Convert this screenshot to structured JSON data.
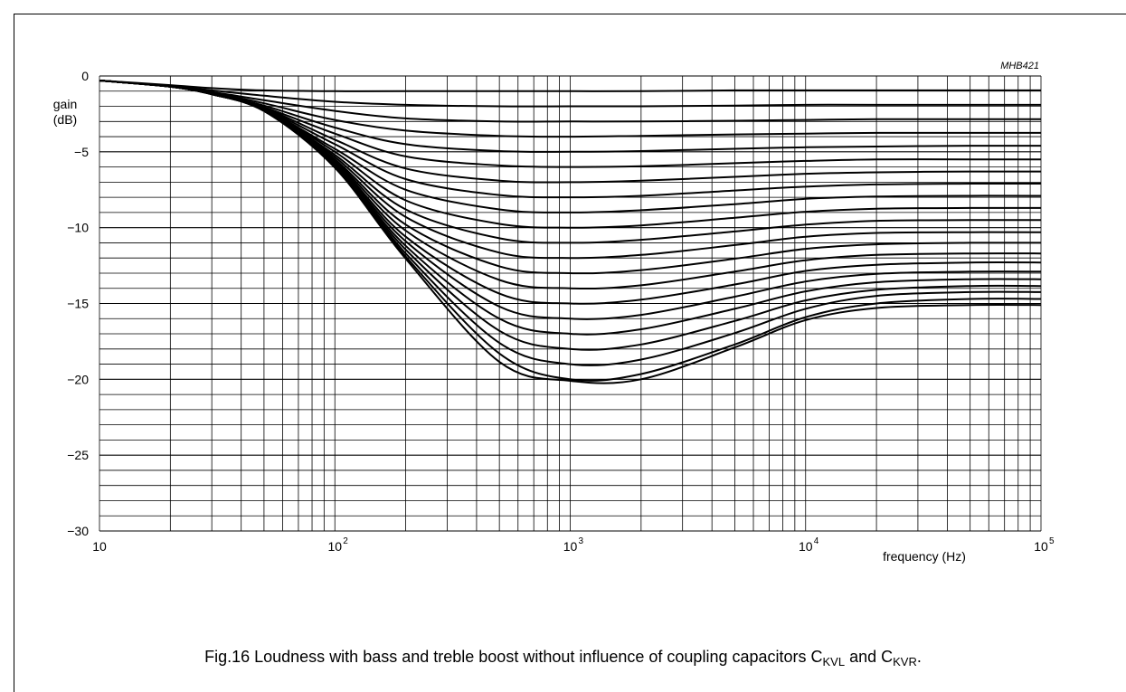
{
  "chart_data": {
    "type": "line",
    "code": "MHB421",
    "ylabel": [
      "gain",
      "(dB)"
    ],
    "xlabel": "frequency (Hz)",
    "x_scale": "log",
    "xlim": [
      10,
      100000
    ],
    "ylim": [
      -30,
      0
    ],
    "grid": true,
    "y_ticks": [
      0,
      -5,
      -10,
      -15,
      -20,
      -25,
      -30
    ],
    "y_tick_labels": [
      "0",
      "−5",
      "−10",
      "−15",
      "−20",
      "−25",
      "−30"
    ],
    "x_ticks": [
      {
        "value": 10,
        "base": "10",
        "exp": ""
      },
      {
        "value": 100,
        "base": "10",
        "exp": "2"
      },
      {
        "value": 1000,
        "base": "10",
        "exp": "3"
      },
      {
        "value": 10000,
        "base": "10",
        "exp": "4"
      },
      {
        "value": 100000,
        "base": "10",
        "exp": "5"
      }
    ],
    "series": [
      {
        "x": [
          10,
          20,
          30,
          50,
          100,
          200,
          500,
          1000,
          2000,
          5000,
          10000,
          20000,
          50000,
          100000
        ],
        "y": [
          -0.3,
          -0.6,
          -0.8,
          -0.95,
          -1.0,
          -1.0,
          -1.0,
          -1.0,
          -1.0,
          -0.95,
          -0.95,
          -0.95,
          -0.95,
          -0.95
        ]
      },
      {
        "x": [
          10,
          20,
          30,
          50,
          100,
          200,
          500,
          1000,
          2000,
          5000,
          10000,
          20000,
          50000,
          100000
        ],
        "y": [
          -0.3,
          -0.65,
          -0.95,
          -1.3,
          -1.7,
          -1.9,
          -2.0,
          -2.0,
          -2.0,
          -1.95,
          -1.9,
          -1.9,
          -1.9,
          -1.9
        ]
      },
      {
        "x": [
          10,
          20,
          30,
          50,
          100,
          200,
          500,
          1000,
          2000,
          5000,
          10000,
          20000,
          50000,
          100000
        ],
        "y": [
          -0.3,
          -0.7,
          -1.05,
          -1.6,
          -2.3,
          -2.8,
          -3.0,
          -3.0,
          -3.0,
          -2.95,
          -2.9,
          -2.85,
          -2.85,
          -2.85
        ]
      },
      {
        "x": [
          10,
          20,
          30,
          50,
          100,
          200,
          500,
          1000,
          2000,
          5000,
          10000,
          20000,
          50000,
          100000
        ],
        "y": [
          -0.3,
          -0.7,
          -1.1,
          -1.8,
          -2.9,
          -3.6,
          -3.95,
          -4.0,
          -3.95,
          -3.85,
          -3.8,
          -3.75,
          -3.75,
          -3.75
        ]
      },
      {
        "x": [
          10,
          20,
          30,
          50,
          100,
          200,
          500,
          1000,
          2000,
          5000,
          10000,
          20000,
          50000,
          100000
        ],
        "y": [
          -0.3,
          -0.7,
          -1.15,
          -1.95,
          -3.4,
          -4.5,
          -4.95,
          -5.0,
          -4.95,
          -4.8,
          -4.7,
          -4.65,
          -4.6,
          -4.6
        ]
      },
      {
        "x": [
          10,
          20,
          30,
          50,
          100,
          200,
          500,
          1000,
          2000,
          5000,
          10000,
          20000,
          50000,
          100000
        ],
        "y": [
          -0.3,
          -0.7,
          -1.15,
          -2.05,
          -3.8,
          -5.3,
          -5.9,
          -6.0,
          -5.95,
          -5.75,
          -5.6,
          -5.5,
          -5.5,
          -5.5
        ]
      },
      {
        "x": [
          10,
          20,
          30,
          50,
          100,
          200,
          500,
          1000,
          2000,
          5000,
          10000,
          20000,
          50000,
          100000
        ],
        "y": [
          -0.3,
          -0.7,
          -1.2,
          -2.1,
          -4.2,
          -6.1,
          -6.9,
          -7.0,
          -6.9,
          -6.65,
          -6.45,
          -6.35,
          -6.3,
          -6.3
        ]
      },
      {
        "x": [
          10,
          20,
          30,
          50,
          100,
          200,
          500,
          1000,
          2000,
          5000,
          10000,
          20000,
          50000,
          100000
        ],
        "y": [
          -0.3,
          -0.7,
          -1.2,
          -2.15,
          -4.5,
          -6.8,
          -7.85,
          -8.0,
          -7.9,
          -7.55,
          -7.3,
          -7.15,
          -7.1,
          -7.1
        ]
      },
      {
        "x": [
          10,
          20,
          30,
          50,
          100,
          200,
          500,
          1000,
          2000,
          5000,
          10000,
          20000,
          50000,
          100000
        ],
        "y": [
          -0.3,
          -0.7,
          -1.2,
          -2.2,
          -4.8,
          -7.5,
          -8.8,
          -9.0,
          -8.85,
          -8.45,
          -8.1,
          -7.95,
          -7.9,
          -7.9
        ]
      },
      {
        "x": [
          10,
          20,
          30,
          50,
          100,
          200,
          500,
          1000,
          2000,
          5000,
          10000,
          20000,
          50000,
          100000
        ],
        "y": [
          -0.3,
          -0.7,
          -1.2,
          -2.2,
          -5.0,
          -8.2,
          -9.75,
          -10.0,
          -9.85,
          -9.35,
          -8.95,
          -8.75,
          -8.7,
          -8.7
        ]
      },
      {
        "x": [
          10,
          20,
          30,
          50,
          100,
          200,
          500,
          1000,
          2000,
          5000,
          10000,
          20000,
          50000,
          100000
        ],
        "y": [
          -0.3,
          -0.7,
          -1.2,
          -2.25,
          -5.2,
          -8.8,
          -10.7,
          -11.0,
          -10.8,
          -10.25,
          -9.8,
          -9.55,
          -9.5,
          -9.5
        ]
      },
      {
        "x": [
          10,
          20,
          30,
          50,
          100,
          200,
          500,
          1000,
          2000,
          5000,
          10000,
          20000,
          50000,
          100000
        ],
        "y": [
          -0.3,
          -0.7,
          -1.2,
          -2.25,
          -5.35,
          -9.3,
          -11.65,
          -12.0,
          -11.8,
          -11.15,
          -10.6,
          -10.35,
          -10.3,
          -10.3
        ]
      },
      {
        "x": [
          10,
          20,
          30,
          50,
          100,
          200,
          500,
          1000,
          2000,
          5000,
          10000,
          20000,
          50000,
          100000
        ],
        "y": [
          -0.3,
          -0.7,
          -1.2,
          -2.3,
          -5.5,
          -9.8,
          -12.55,
          -13.0,
          -12.8,
          -12.05,
          -11.4,
          -11.1,
          -11.0,
          -11.0
        ]
      },
      {
        "x": [
          10,
          20,
          30,
          50,
          100,
          200,
          500,
          1000,
          2000,
          5000,
          10000,
          20000,
          50000,
          100000
        ],
        "y": [
          -0.3,
          -0.7,
          -1.2,
          -2.3,
          -5.6,
          -10.2,
          -13.45,
          -14.0,
          -13.8,
          -12.9,
          -12.15,
          -11.8,
          -11.7,
          -11.7
        ]
      },
      {
        "x": [
          10,
          20,
          30,
          50,
          100,
          200,
          500,
          1000,
          2000,
          5000,
          10000,
          20000,
          50000,
          100000
        ],
        "y": [
          -0.3,
          -0.7,
          -1.2,
          -2.3,
          -5.7,
          -10.6,
          -14.35,
          -15.0,
          -14.75,
          -13.75,
          -12.85,
          -12.45,
          -12.3,
          -12.3
        ]
      },
      {
        "x": [
          10,
          20,
          30,
          50,
          100,
          200,
          500,
          1000,
          2000,
          5000,
          10000,
          20000,
          50000,
          100000
        ],
        "y": [
          -0.3,
          -0.7,
          -1.2,
          -2.3,
          -5.8,
          -10.9,
          -15.2,
          -16.0,
          -15.75,
          -14.55,
          -13.55,
          -13.05,
          -12.9,
          -12.9
        ]
      },
      {
        "x": [
          10,
          20,
          30,
          50,
          100,
          200,
          500,
          1000,
          2000,
          5000,
          10000,
          20000,
          50000,
          100000
        ],
        "y": [
          -0.3,
          -0.7,
          -1.2,
          -2.3,
          -5.85,
          -11.2,
          -16.0,
          -17.0,
          -16.7,
          -15.35,
          -14.2,
          -13.6,
          -13.4,
          -13.4
        ]
      },
      {
        "x": [
          10,
          20,
          30,
          50,
          100,
          200,
          500,
          1000,
          2000,
          5000,
          10000,
          20000,
          50000,
          100000
        ],
        "y": [
          -0.3,
          -0.7,
          -1.2,
          -2.3,
          -5.9,
          -11.45,
          -16.8,
          -18.0,
          -17.7,
          -16.15,
          -14.8,
          -14.1,
          -13.85,
          -13.85
        ]
      },
      {
        "x": [
          10,
          20,
          30,
          50,
          100,
          200,
          500,
          1000,
          2000,
          5000,
          10000,
          20000,
          50000,
          100000
        ],
        "y": [
          -0.3,
          -0.7,
          -1.2,
          -2.3,
          -5.95,
          -11.7,
          -17.6,
          -19.0,
          -18.7,
          -16.95,
          -15.35,
          -14.5,
          -14.25,
          -14.25
        ]
      },
      {
        "x": [
          10,
          20,
          30,
          50,
          100,
          200,
          500,
          1000,
          2000,
          5000,
          10000,
          20000,
          50000,
          100000
        ],
        "y": [
          -0.3,
          -0.7,
          -1.2,
          -2.3,
          -6.0,
          -11.9,
          -18.3,
          -20.0,
          -19.65,
          -17.7,
          -15.9,
          -15.0,
          -14.7,
          -14.7
        ]
      },
      {
        "x": [
          10,
          20,
          30,
          50,
          100,
          200,
          500,
          1000,
          2000,
          5000,
          10000,
          20000,
          50000,
          100000
        ],
        "y": [
          -0.3,
          -0.7,
          -1.2,
          -2.3,
          -6.05,
          -12.05,
          -18.85,
          -20.1,
          -20.0,
          -17.9,
          -16.1,
          -15.3,
          -15.1,
          -15.1
        ]
      }
    ]
  },
  "caption": {
    "text": "Fig.16  Loudness with bass and treble boost without influence of coupling capacitors C",
    "sub1": "KVL",
    "mid": " and C",
    "sub2": "KVR",
    "end": "."
  }
}
